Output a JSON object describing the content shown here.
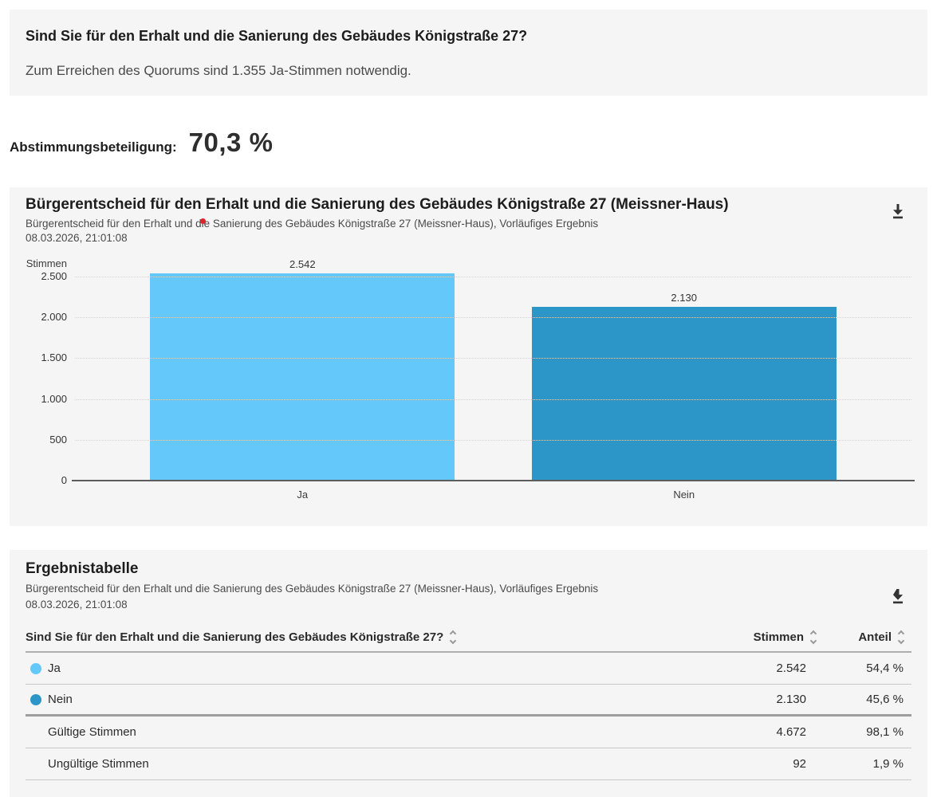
{
  "question_box": {
    "title": "Sind Sie für den Erhalt und die Sanierung des Gebäudes Königstraße 27?",
    "subtitle": "Zum Erreichen des Quorums sind 1.355 Ja-Stimmen notwendig."
  },
  "participation": {
    "label": "Abstimmungsbeteiligung:",
    "value": "70,3 %"
  },
  "chart_card": {
    "title": "Bürgerentscheid für den Erhalt und die Sanierung des Gebäudes Königstraße 27 (Meissner-Haus)",
    "subtitle_line1": "Bürgerentscheid für den Erhalt und die Sanierung des Gebäudes Königstraße 27 (Meissner-Haus), Vorläufiges Ergebnis",
    "subtitle_line2": "08.03.2026, 21:01:08",
    "download_icon": "download-icon"
  },
  "chart_data": {
    "type": "bar",
    "title": "Bürgerentscheid für den Erhalt und die Sanierung des Gebäudes Königstraße 27 (Meissner-Haus)",
    "subtitle": "Bürgerentscheid für den Erhalt und die Sanierung des Gebäudes Königstraße 27 (Meissner-Haus), Vorläufiges Ergebnis",
    "timestamp": "08.03.2026, 21:01:08",
    "categories": [
      "Ja",
      "Nein"
    ],
    "values": [
      2542,
      2130
    ],
    "value_labels": [
      "2.542",
      "2.130"
    ],
    "bar_colors": [
      "#64c8fa",
      "#2d96c8"
    ],
    "ylabel": "Stimmen",
    "xlabel": "",
    "ylim": [
      0,
      2500
    ],
    "yticks": [
      0,
      500,
      1000,
      1500,
      2000,
      2500
    ],
    "ytick_labels": [
      "0",
      "500",
      "1.000",
      "1.500",
      "2.000",
      "2.500"
    ],
    "grid": "horizontal-dotted",
    "legend": "none"
  },
  "table_card": {
    "title": "Ergebnistabelle",
    "subtitle_line1": "Bürgerentscheid für den Erhalt und die Sanierung des Gebäudes Königstraße 27 (Meissner-Haus), Vorläufiges Ergebnis",
    "subtitle_line2": "08.03.2026, 21:01:08",
    "download_icon": "download-icon",
    "columns": [
      {
        "label": "Sind Sie für den Erhalt und die Sanierung des Gebäudes Königstraße 27?",
        "sortable": true
      },
      {
        "label": "Stimmen",
        "sortable": true
      },
      {
        "label": "Anteil",
        "sortable": true
      }
    ],
    "rows": [
      {
        "label": "Ja",
        "dot_color": "#64c8fa",
        "stimmen": "2.542",
        "anteil": "54,4 %"
      },
      {
        "label": "Nein",
        "dot_color": "#2d96c8",
        "stimmen": "2.130",
        "anteil": "45,6 %"
      },
      {
        "label": "Gültige Stimmen",
        "dot_color": null,
        "stimmen": "4.672",
        "anteil": "98,1 %"
      },
      {
        "label": "Ungültige Stimmen",
        "dot_color": null,
        "stimmen": "92",
        "anteil": "1,9 %"
      }
    ]
  },
  "colors": {
    "card_background": "#f5f5f5",
    "ja_blue": "#64c8fa",
    "nein_blue": "#2d96c8",
    "axis_line": "#5c5c5c",
    "red_marker": "#d9262c",
    "icon_dark": "#333333"
  }
}
